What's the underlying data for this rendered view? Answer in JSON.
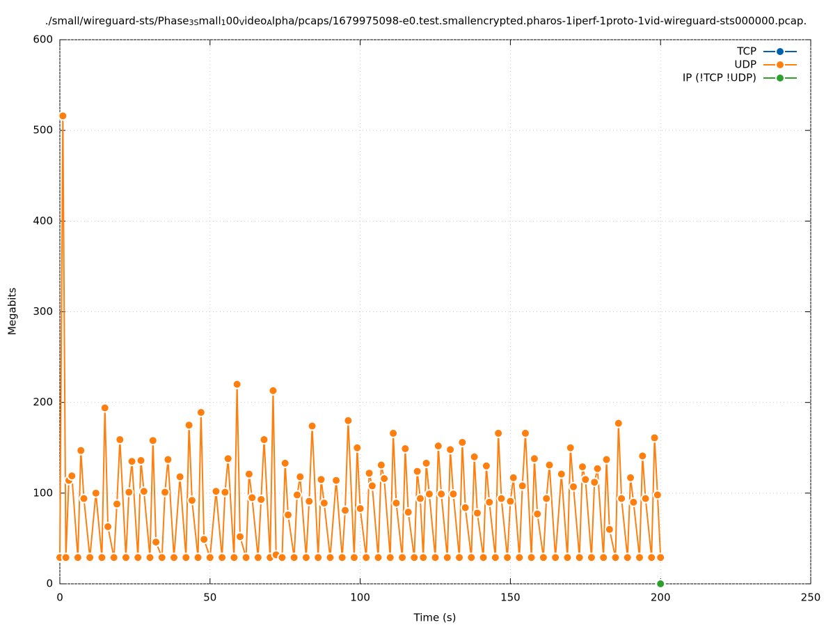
{
  "chart_data": {
    "type": "line",
    "title_parts": [
      "./small/wireguard-sts/Phase",
      "3S",
      "mall",
      "1",
      "00",
      "V",
      "ideo",
      "A",
      "lpha/pcaps/1679975098-e0.test.smallencrypted.pharos-1iperf-1proto-1vid-wireguard-sts000000.pcap."
    ],
    "x_label": "Time (s)",
    "y_label": "Megabits",
    "xlim": [
      0,
      250
    ],
    "xticks": [
      0,
      50,
      100,
      150,
      200,
      250
    ],
    "ylim": [
      0,
      600
    ],
    "yticks": [
      0,
      100,
      200,
      300,
      400,
      500,
      600
    ],
    "grid": true,
    "legend": "top-right",
    "series": [
      {
        "name": "TCP",
        "color": "#0060ad",
        "x": [],
        "values": []
      },
      {
        "name": "UDP",
        "color": "#ff7f0e",
        "x": [
          0,
          1,
          2,
          3,
          4,
          6,
          7,
          8,
          10,
          12,
          14,
          15,
          16,
          18,
          19,
          20,
          22,
          23,
          24,
          26,
          27,
          28,
          30,
          31,
          32,
          34,
          35,
          36,
          38,
          40,
          42,
          43,
          44,
          46,
          47,
          48,
          50,
          52,
          54,
          55,
          56,
          58,
          59,
          60,
          62,
          63,
          64,
          66,
          67,
          68,
          70,
          71,
          72,
          74,
          75,
          76,
          78,
          79,
          80,
          82,
          83,
          84,
          86,
          87,
          88,
          90,
          92,
          94,
          95,
          96,
          98,
          99,
          100,
          102,
          103,
          104,
          106,
          107,
          108,
          110,
          111,
          112,
          114,
          115,
          116,
          118,
          119,
          120,
          121,
          122,
          123,
          125,
          126,
          127,
          129,
          130,
          131,
          133,
          134,
          135,
          137,
          138,
          139,
          141,
          142,
          143,
          145,
          146,
          147,
          149,
          150,
          151,
          153,
          154,
          155,
          157,
          158,
          159,
          161,
          162,
          163,
          165,
          167,
          169,
          170,
          171,
          173,
          174,
          175,
          177,
          178,
          179,
          181,
          182,
          183,
          185,
          186,
          187,
          189,
          190,
          191,
          193,
          194,
          195,
          197,
          198,
          199,
          200
        ],
        "values": [
          29,
          516,
          29,
          114,
          119,
          29,
          147,
          94,
          29,
          100,
          29,
          194,
          63,
          29,
          88,
          159,
          29,
          101,
          135,
          29,
          136,
          102,
          29,
          158,
          46,
          29,
          101,
          137,
          29,
          118,
          29,
          175,
          92,
          29,
          189,
          49,
          29,
          102,
          29,
          101,
          138,
          29,
          220,
          52,
          29,
          121,
          95,
          29,
          93,
          159,
          29,
          213,
          32,
          29,
          133,
          76,
          29,
          98,
          118,
          29,
          91,
          174,
          29,
          115,
          89,
          29,
          114,
          29,
          81,
          180,
          29,
          150,
          83,
          29,
          122,
          108,
          29,
          131,
          116,
          29,
          166,
          89,
          29,
          149,
          79,
          29,
          124,
          94,
          29,
          133,
          99,
          29,
          152,
          99,
          29,
          148,
          99,
          29,
          156,
          84,
          29,
          140,
          78,
          29,
          130,
          90,
          29,
          166,
          94,
          29,
          91,
          117,
          29,
          108,
          166,
          29,
          138,
          77,
          29,
          94,
          131,
          29,
          121,
          29,
          150,
          107,
          29,
          129,
          115,
          29,
          112,
          127,
          29,
          137,
          60,
          29,
          177,
          94,
          29,
          117,
          90,
          29,
          141,
          94,
          29,
          161,
          98,
          29
        ]
      },
      {
        "name": "IP (!TCP  !UDP)",
        "color": "#2ca02c",
        "x": [
          200
        ],
        "values": [
          0
        ]
      }
    ]
  }
}
